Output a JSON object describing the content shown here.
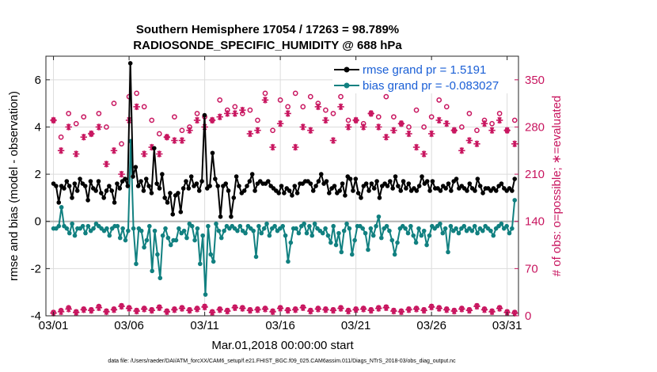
{
  "chart_data": {
    "type": "line",
    "title": "Southern Hemisphere 17054 / 17263 = 98.789%",
    "subtitle": "RADIOSONDE_SPECIFIC_HUMIDITY @ 688 hPa",
    "ylabel": "rmse and bias (model - observation)",
    "y2label": "# of obs: o=possible; ∗=evaluated",
    "xlabel": "Mar.01,2018 00:00:00 start",
    "footnote": "data file: /Users/raeder/DAI/ATM_forcXX/CAM6_setup/f.e21.FHIST_BGC.f09_025.CAM6assim.011/Diags_NTrS_2018-03/obs_diag_output.nc",
    "xlim": [
      0.5,
      31.75
    ],
    "ylim": [
      -4,
      7
    ],
    "y2lim": [
      0,
      385
    ],
    "xticks": [
      1,
      6,
      11,
      16,
      21,
      26,
      31
    ],
    "xtick_labels": [
      "03/01",
      "03/06",
      "03/11",
      "03/16",
      "03/21",
      "03/26",
      "03/31"
    ],
    "yticks": [
      -4,
      -2,
      0,
      2,
      4,
      6
    ],
    "ytick_labels": [
      "-4",
      "-2",
      "0",
      "2",
      "4",
      "6"
    ],
    "y2ticks": [
      0,
      70,
      140,
      210,
      280,
      350
    ],
    "y2tick_labels": [
      "0",
      "70",
      "140",
      "210",
      "280",
      "350"
    ],
    "grid": true,
    "legend_position": "top-right",
    "colors": {
      "rmse": "#000000",
      "bias": "#118080",
      "obs": "#c8155f",
      "legend_text": "#1a5fd6",
      "zero": "#b4b4b4"
    },
    "series": [
      {
        "name": "rmse grand pr = 1.5191",
        "axis": "left",
        "values": [
          1.6,
          1.5,
          0.8,
          1.5,
          1.4,
          1.7,
          1.5,
          1.0,
          1.6,
          1.3,
          1.8,
          1.6,
          1.5,
          0.9,
          1.7,
          1.4,
          1.3,
          1.7,
          1.2,
          1.0,
          1.3,
          1.5,
          1.3,
          0.8,
          1.6,
          1.4,
          1.7,
          1.8,
          1.5,
          6.7,
          1.9,
          2.3,
          1.5,
          1.7,
          1.3,
          1.8,
          1.5,
          1.2,
          3.1,
          1.6,
          1.4,
          2.0,
          1.0,
          0.8,
          1.2,
          0.3,
          1.1,
          1.2,
          0.4,
          1.4,
          1.7,
          1.4,
          1.9,
          1.5,
          1.6,
          1.3,
          1.7,
          4.5,
          1.4,
          1.5,
          2.9,
          1.8,
          1.5,
          0.2,
          1.5,
          1.6,
          1.3,
          0.2,
          1.0,
          1.9,
          1.5,
          1.2,
          1.3,
          1.5,
          1.7,
          2.0,
          1.3,
          1.6,
          1.7,
          1.6,
          1.6,
          1.7,
          1.5,
          1.4,
          1.3,
          1.2,
          1.5,
          1.2,
          1.4,
          1.3,
          1.1,
          1.5,
          1.2,
          1.6,
          1.6,
          1.7,
          1.7,
          1.6,
          1.3,
          1.5,
          1.7,
          2.0,
          1.6,
          1.7,
          1.2,
          1.4,
          1.5,
          1.2,
          1.3,
          1.6,
          1.1,
          1.9,
          1.8,
          1.3,
          1.8,
          1.2,
          1.0,
          1.5,
          1.6,
          1.3,
          1.6,
          1.4,
          1.7,
          1.0,
          1.5,
          1.6,
          1.5,
          1.7,
          1.4,
          1.9,
          1.5,
          1.3,
          1.7,
          1.4,
          1.6,
          1.3,
          1.4,
          1.3,
          1.5,
          1.9,
          1.6,
          1.7,
          1.3,
          1.7,
          1.4,
          1.4,
          1.3,
          1.5,
          1.4,
          1.6,
          1.3,
          1.7,
          1.8,
          1.4,
          1.5,
          1.4,
          1.3,
          1.6,
          1.4,
          1.3,
          1.8,
          1.5,
          1.2,
          1.4,
          1.4,
          1.3,
          1.4,
          1.3,
          1.5,
          1.6,
          1.4,
          1.3,
          1.4,
          1.3,
          1.8
        ]
      },
      {
        "name": "bias grand pr = -0.083027",
        "axis": "left",
        "values": [
          -0.3,
          -0.3,
          -0.2,
          0.6,
          -0.2,
          -0.3,
          -0.5,
          -0.1,
          -0.6,
          -0.3,
          -0.3,
          -0.2,
          -0.5,
          -0.2,
          -0.4,
          -0.3,
          -0.1,
          -0.2,
          -0.3,
          -0.4,
          -0.3,
          -0.6,
          -0.3,
          -0.2,
          -0.2,
          -0.7,
          -0.3,
          -0.8,
          -0.4,
          3.4,
          -0.3,
          -1.8,
          -0.3,
          -0.4,
          -1.1,
          -0.8,
          -0.2,
          -2.1,
          -0.4,
          -1.4,
          -2.4,
          -0.6,
          -0.3,
          -0.7,
          -1.0,
          -0.8,
          -0.8,
          -0.3,
          -0.5,
          -0.4,
          -0.7,
          -0.1,
          -0.2,
          -0.8,
          -0.3,
          -1.8,
          -0.6,
          -3.1,
          -0.2,
          -1.4,
          -1.7,
          -0.1,
          -0.4,
          -0.7,
          -0.4,
          -0.2,
          -0.3,
          -0.2,
          -0.3,
          -0.4,
          -0.2,
          -0.4,
          -0.5,
          -0.2,
          -0.3,
          -0.4,
          -1.5,
          -0.2,
          -0.5,
          -0.3,
          -0.1,
          -0.6,
          -0.3,
          -0.2,
          -0.4,
          -0.3,
          -0.2,
          -0.6,
          -1.7,
          -0.9,
          -0.3,
          -0.3,
          -0.5,
          -0.2,
          -0.1,
          -0.5,
          -0.2,
          -0.6,
          -0.1,
          -0.3,
          -0.4,
          -0.5,
          -0.3,
          -0.6,
          -0.9,
          -0.2,
          -1.0,
          -0.5,
          -1.3,
          -0.4,
          -0.1,
          -0.3,
          -1.4,
          -0.8,
          -0.2,
          -0.2,
          -0.3,
          -0.5,
          -1.2,
          -0.3,
          -0.6,
          -0.2,
          0.2,
          -0.7,
          -0.3,
          -0.2,
          -0.4,
          -0.8,
          -1.4,
          -0.9,
          -0.3,
          -0.2,
          -0.3,
          -0.5,
          -0.2,
          -0.6,
          -0.9,
          -0.3,
          -0.6,
          -0.4,
          -1.0,
          -0.6,
          -0.2,
          -0.3,
          -0.2,
          -0.1,
          -0.5,
          -0.3,
          -1.3,
          -0.2,
          -0.4,
          -0.3,
          -0.5,
          -0.3,
          -0.2,
          -0.4,
          -0.3,
          -0.4,
          -0.2,
          -0.5,
          -0.3,
          -0.4,
          -0.2,
          -0.3,
          -0.4,
          -0.6,
          -0.3,
          -0.2,
          -0.1,
          -0.3,
          -0.2,
          -0.5,
          -0.3,
          0.9
        ]
      },
      {
        "name": "obs possible",
        "axis": "right",
        "x": [
          1,
          1.5,
          2,
          2.5,
          3,
          3.5,
          4,
          4.5,
          5,
          5.5,
          6,
          6.5,
          7,
          7.5,
          8,
          8.5,
          9,
          9.5,
          10,
          10.5,
          11,
          11.5,
          12,
          12.5,
          13,
          13.5,
          14,
          14.5,
          15,
          15.5,
          16,
          16.5,
          17,
          17.5,
          18,
          18.5,
          19,
          19.5,
          20,
          20.5,
          21,
          21.5,
          22,
          22.5,
          23,
          23.5,
          24,
          24.5,
          25,
          25.5,
          26,
          26.5,
          27,
          27.5,
          28,
          28.5,
          29,
          29.5,
          30,
          30.5,
          31,
          31.5
        ],
        "values": [
          290,
          265,
          300,
          285,
          295,
          270,
          300,
          280,
          315,
          255,
          325,
          330,
          310,
          290,
          270,
          265,
          295,
          275,
          280,
          300,
          295,
          290,
          320,
          305,
          310,
          300,
          305,
          290,
          330,
          275,
          320,
          310,
          330,
          310,
          325,
          315,
          305,
          300,
          325,
          290,
          290,
          285,
          300,
          295,
          325,
          295,
          285,
          280,
          305,
          280,
          295,
          320,
          310,
          275,
          280,
          300,
          275,
          290,
          285,
          300,
          275,
          290
        ],
        "counts_lower": [
          5,
          8,
          12,
          6,
          10,
          9,
          14,
          7,
          10,
          15,
          12,
          8,
          11,
          9,
          13,
          7,
          10,
          12,
          9,
          11,
          14,
          6,
          10,
          8,
          13,
          12,
          9,
          10,
          11,
          7,
          12,
          9,
          10,
          13,
          8,
          11,
          10,
          9,
          12,
          8,
          10,
          11,
          9,
          12,
          13,
          8,
          7,
          10,
          11,
          9,
          14,
          12,
          10,
          8,
          11,
          9,
          15,
          10,
          7,
          12,
          6,
          5
        ]
      },
      {
        "name": "obs evaluated",
        "axis": "right",
        "x": [
          1,
          1.5,
          2,
          2.5,
          3,
          3.5,
          4,
          4.5,
          5,
          5.5,
          6,
          6.5,
          7,
          7.5,
          8,
          8.5,
          9,
          9.5,
          10,
          10.5,
          11,
          11.5,
          12,
          12.5,
          13,
          13.5,
          14,
          14.5,
          15,
          15.5,
          16,
          16.5,
          17,
          17.5,
          18,
          18.5,
          19,
          19.5,
          20,
          20.5,
          21,
          21.5,
          22,
          22.5,
          23,
          23.5,
          24,
          24.5,
          25,
          25.5,
          26,
          26.5,
          27,
          27.5,
          28,
          28.5,
          29,
          29.5,
          30,
          30.5,
          31,
          31.5
        ],
        "values": [
          290,
          245,
          280,
          240,
          265,
          270,
          280,
          225,
          245,
          210,
          290,
          310,
          240,
          250,
          240,
          265,
          260,
          260,
          275,
          290,
          280,
          290,
          295,
          300,
          300,
          305,
          270,
          275,
          320,
          250,
          285,
          300,
          250,
          280,
          275,
          310,
          290,
          260,
          310,
          280,
          290,
          280,
          300,
          280,
          265,
          275,
          285,
          270,
          250,
          240,
          270,
          290,
          285,
          275,
          245,
          260,
          255,
          285,
          275,
          290,
          275,
          255
        ],
        "counts_lower": [
          4,
          6,
          10,
          5,
          9,
          8,
          12,
          6,
          9,
          14,
          11,
          7,
          10,
          8,
          12,
          6,
          9,
          11,
          8,
          10,
          13,
          5,
          9,
          7,
          12,
          11,
          8,
          9,
          10,
          6,
          11,
          8,
          9,
          12,
          7,
          10,
          9,
          8,
          11,
          7,
          9,
          10,
          8,
          11,
          12,
          7,
          6,
          9,
          10,
          8,
          13,
          11,
          9,
          7,
          10,
          8,
          14,
          9,
          6,
          11,
          5,
          4
        ]
      }
    ]
  }
}
